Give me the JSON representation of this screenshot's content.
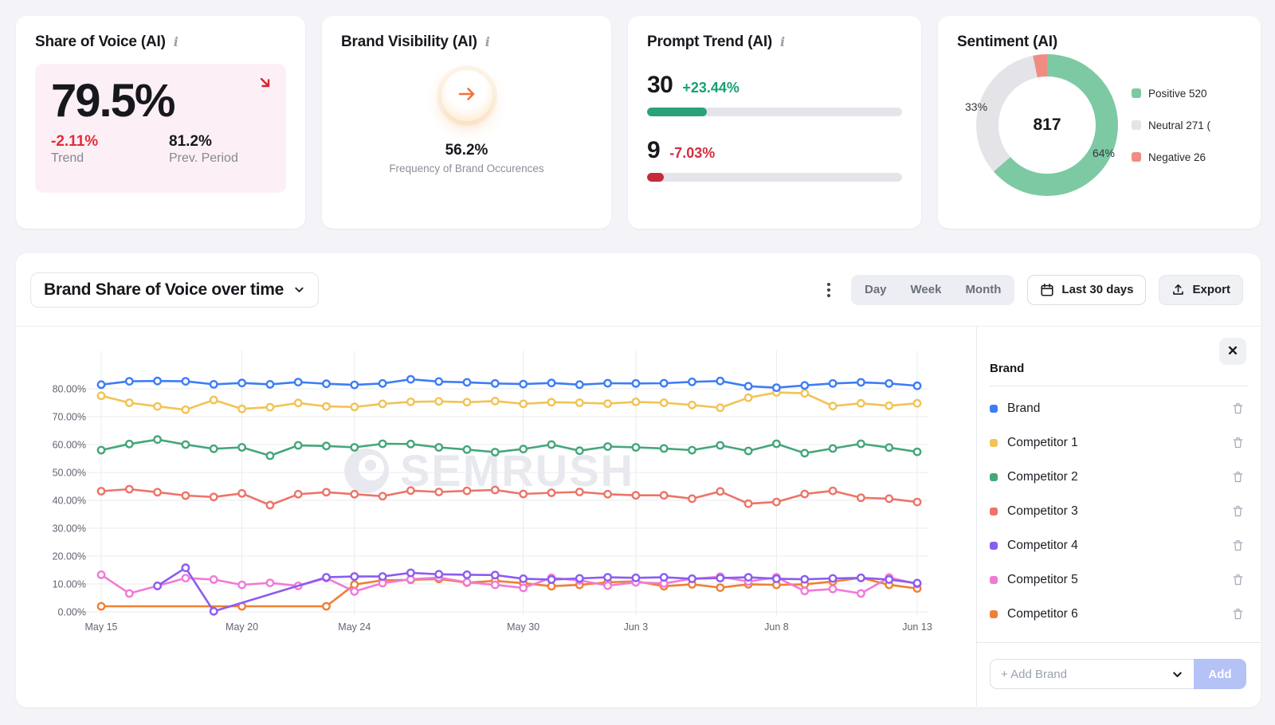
{
  "cards": {
    "share_of_voice": {
      "title": "Share of Voice (AI)",
      "value": "79.5%",
      "trend_value": "-2.11%",
      "trend_label": "Trend",
      "prev_value": "81.2%",
      "prev_label": "Prev. Period",
      "trend_color": "#e42b38",
      "arrow_icon": "arrow-down-right",
      "arrow_color": "#d6252f"
    },
    "brand_visibility": {
      "title": "Brand Visibility (AI)",
      "value": "56.2%",
      "caption": "Frequency of Brand Occurences",
      "arrow_icon": "arrow-right",
      "arrow_color": "#f4713b"
    },
    "prompt_trend": {
      "title": "Prompt Trend (AI)",
      "rows": [
        {
          "value": "30",
          "delta": "+23.44%",
          "delta_color": "#16a173",
          "bar_color": "#2aa178",
          "bar_fill_pct": 23.4
        },
        {
          "value": "9",
          "delta": "-7.03%",
          "delta_color": "#d32e3d",
          "bar_color": "#c62b3c",
          "bar_fill_pct": 6.6
        }
      ]
    },
    "sentiment": {
      "title": "Sentiment (AI)",
      "total": "817",
      "slices": [
        {
          "label": "Positive 520",
          "value": 520,
          "pct": 63.6,
          "color": "#7dc9a3"
        },
        {
          "label": "Neutral 271 (",
          "value": 271,
          "pct": 33.2,
          "color": "#e4e4e8"
        },
        {
          "label": "Negative 26",
          "value": 26,
          "pct": 3.2,
          "color": "#ef8d83"
        }
      ],
      "donut_labels": [
        "33%",
        "64%"
      ]
    }
  },
  "main": {
    "title": "Brand Share of Voice over time",
    "toggles": [
      "Day",
      "Week",
      "Month"
    ],
    "date_range": "Last 30 days",
    "export_label": "Export",
    "watermark": "SEMRUSH",
    "panel": {
      "header": "Brand",
      "brands": [
        {
          "name": "Brand",
          "color": "#3d7df5"
        },
        {
          "name": "Competitor 1",
          "color": "#f2c355"
        },
        {
          "name": "Competitor 2",
          "color": "#45a67a"
        },
        {
          "name": "Competitor 3",
          "color": "#ed7468"
        },
        {
          "name": "Competitor 4",
          "color": "#8b5cf0"
        },
        {
          "name": "Competitor 5",
          "color": "#f07ad8"
        },
        {
          "name": "Competitor 6",
          "color": "#ef8034"
        }
      ],
      "add_placeholder": "+ Add Brand",
      "add_button": "Add"
    }
  },
  "chart_data": {
    "type": "line",
    "title": "Brand Share of Voice over time",
    "x": [
      "May 15",
      "May 16",
      "May 17",
      "May 18",
      "May 19",
      "May 20",
      "May 21",
      "May 22",
      "May 23",
      "May 24",
      "May 25",
      "May 26",
      "May 27",
      "May 28",
      "May 29",
      "May 30",
      "May 31",
      "Jun 1",
      "Jun 2",
      "Jun 3",
      "Jun 4",
      "Jun 5",
      "Jun 6",
      "Jun 7",
      "Jun 8",
      "Jun 9",
      "Jun 10",
      "Jun 11",
      "Jun 12",
      "Jun 13"
    ],
    "x_axis_ticks": [
      "May 15",
      "May 20",
      "May 24",
      "May 30",
      "Jun 3",
      "Jun 8",
      "Jun 13"
    ],
    "x_tick_indices": [
      0,
      5,
      9,
      15,
      19,
      24,
      29
    ],
    "ylim": [
      0,
      80
    ],
    "y_tick_step": 10,
    "y_unit": "%",
    "grid": true,
    "legend_position": "right-panel",
    "series": [
      {
        "name": "Brand",
        "color": "#3d7df5",
        "values": [
          81.5,
          82.7,
          82.8,
          82.7,
          81.6,
          82.1,
          81.6,
          82.4,
          81.8,
          81.4,
          81.9,
          83.4,
          82.6,
          82.3,
          81.9,
          81.7,
          82.1,
          81.5,
          82.0,
          81.9,
          82.0,
          82.5,
          82.8,
          80.9,
          80.4,
          81.2,
          81.9,
          82.3,
          81.9,
          81.1
        ]
      },
      {
        "name": "Competitor 1",
        "color": "#f2c355",
        "values": [
          77.5,
          75.0,
          73.7,
          72.5,
          76.0,
          72.8,
          73.4,
          74.9,
          73.7,
          73.5,
          74.6,
          75.3,
          75.5,
          75.2,
          75.6,
          74.6,
          75.2,
          75.0,
          74.7,
          75.3,
          75.0,
          74.2,
          73.2,
          76.8,
          78.7,
          78.4,
          73.8,
          74.8,
          73.9,
          74.8
        ]
      },
      {
        "name": "Competitor 2",
        "color": "#45a67a",
        "values": [
          58.0,
          60.2,
          61.8,
          60.0,
          58.5,
          59.0,
          56.0,
          59.7,
          59.5,
          59.0,
          60.3,
          60.2,
          59.0,
          58.2,
          57.3,
          58.4,
          60.0,
          57.8,
          59.3,
          59.0,
          58.6,
          58.0,
          59.7,
          57.7,
          60.3,
          56.9,
          58.6,
          60.3,
          58.9,
          57.4
        ]
      },
      {
        "name": "Competitor 3",
        "color": "#ed7468",
        "values": [
          43.3,
          44.0,
          42.9,
          41.7,
          41.2,
          42.5,
          38.3,
          42.2,
          42.9,
          42.2,
          41.5,
          43.5,
          43.0,
          43.4,
          43.7,
          42.3,
          42.7,
          43.0,
          42.2,
          41.8,
          41.8,
          40.6,
          43.2,
          38.8,
          39.4,
          42.3,
          43.4,
          40.9,
          40.6,
          39.4
        ]
      },
      {
        "name": "Competitor 4",
        "color": "#8b5cf0",
        "values": [
          null,
          null,
          9.3,
          15.8,
          0.2,
          null,
          null,
          null,
          12.4,
          12.7,
          12.7,
          14.0,
          13.5,
          13.3,
          13.2,
          11.9,
          11.6,
          12.0,
          12.4,
          12.2,
          12.4,
          11.9,
          12.1,
          12.4,
          11.9,
          11.7,
          12.0,
          12.2,
          11.6,
          10.3
        ]
      },
      {
        "name": "Competitor 5",
        "color": "#f07ad8",
        "values": [
          13.3,
          6.6,
          9.3,
          12.1,
          11.6,
          9.7,
          10.4,
          9.3,
          12.1,
          7.3,
          10.3,
          11.7,
          12.3,
          10.6,
          9.7,
          8.6,
          12.2,
          11.3,
          9.4,
          10.6,
          10.2,
          11.9,
          12.6,
          10.9,
          12.4,
          7.5,
          8.2,
          6.6,
          12.3,
          10.0
        ]
      },
      {
        "name": "Competitor 6",
        "color": "#ef8034",
        "values": [
          2.0,
          null,
          null,
          null,
          null,
          2.0,
          null,
          null,
          2.0,
          9.8,
          11.3,
          11.5,
          11.8,
          10.5,
          11.1,
          10.3,
          9.2,
          9.7,
          10.6,
          11.0,
          9.2,
          9.9,
          8.7,
          9.9,
          9.7,
          9.9,
          10.9,
          12.2,
          9.7,
          8.4
        ]
      }
    ]
  }
}
